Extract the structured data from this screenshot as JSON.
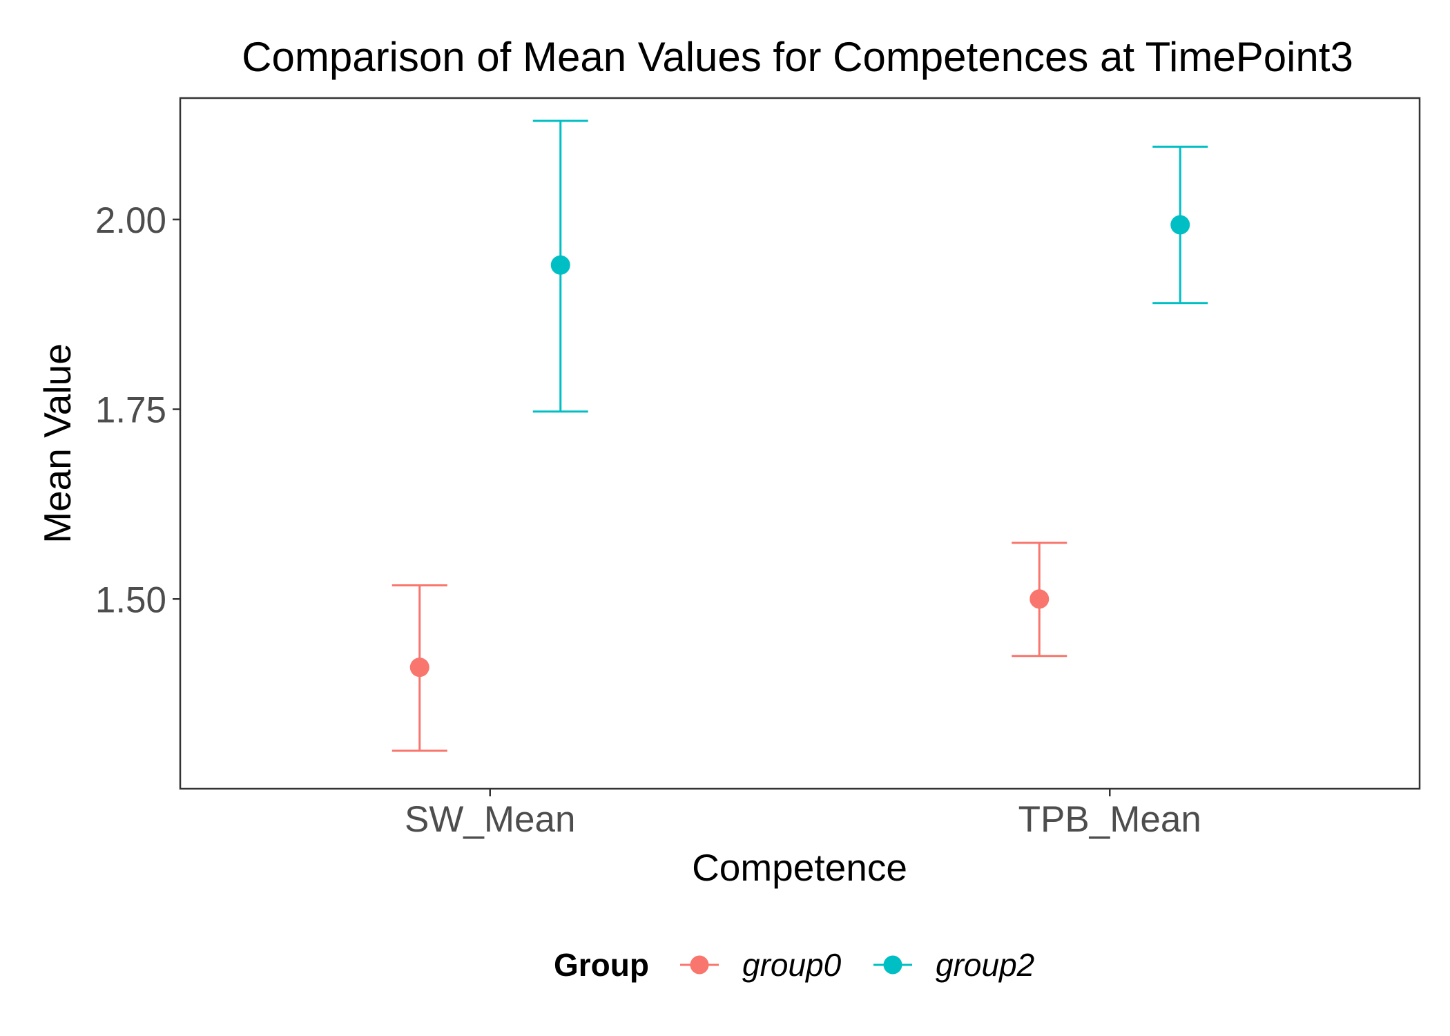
{
  "chart_data": {
    "type": "scatter",
    "title": "Comparison of Mean Values for Competences at TimePoint3",
    "xlabel": "Competence",
    "ylabel": "Mean Value",
    "categories": [
      "SW_Mean",
      "TPB_Mean"
    ],
    "ylim": [
      1.25,
      2.16
    ],
    "yticks": [
      1.5,
      1.75,
      2.0
    ],
    "ytick_labels": [
      "1.50",
      "1.75",
      "2.00"
    ],
    "grid": false,
    "legend": {
      "title": "Group",
      "position": "bottom"
    },
    "series": [
      {
        "name": "group0",
        "color": "#F8766D",
        "values": [
          1.41,
          1.5
        ],
        "lower": [
          1.3,
          1.425
        ],
        "upper": [
          1.518,
          1.574
        ]
      },
      {
        "name": "group2",
        "color": "#00BFC4",
        "values": [
          1.94,
          1.993
        ],
        "lower": [
          1.747,
          1.89
        ],
        "upper": [
          2.13,
          2.096
        ]
      }
    ]
  }
}
